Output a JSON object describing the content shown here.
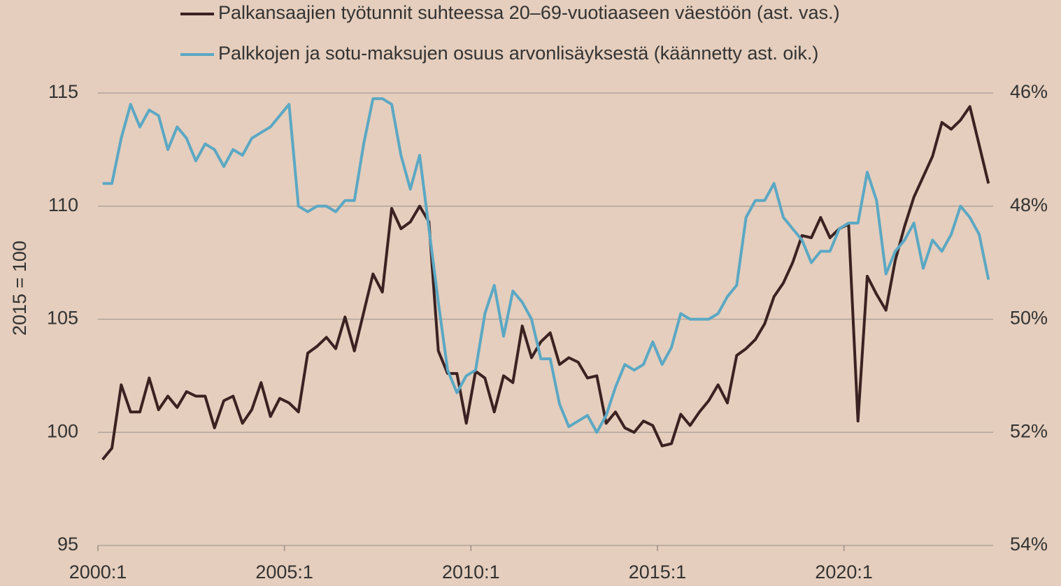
{
  "chart_data": {
    "type": "line",
    "y_label": "2015 = 100",
    "categories": [
      "2000:1",
      null,
      null,
      null,
      null,
      null,
      null,
      null,
      null,
      null,
      null,
      null,
      null,
      null,
      null,
      null,
      null,
      null,
      null,
      null,
      "2005:1",
      null,
      null,
      null,
      null,
      null,
      null,
      null,
      null,
      null,
      null,
      null,
      null,
      null,
      null,
      null,
      null,
      null,
      null,
      null,
      "2010:1",
      null,
      null,
      null,
      null,
      null,
      null,
      null,
      null,
      null,
      null,
      null,
      null,
      null,
      null,
      null,
      null,
      null,
      null,
      null,
      "2015:1",
      null,
      null,
      null,
      null,
      null,
      null,
      null,
      null,
      null,
      null,
      null,
      null,
      null,
      null,
      null,
      null,
      null,
      null,
      null,
      "2020:1",
      null,
      null,
      null,
      null,
      null,
      null,
      null,
      null,
      null,
      null,
      null,
      null,
      null,
      null,
      null
    ],
    "series": [
      {
        "name": "Palkansaajien työtunnit suhteessa 20–69-vuotiaaseen väestöön (ast. vas.)",
        "color": "#3b2222",
        "axis": "y",
        "values": [
          98.8,
          99.3,
          102.1,
          100.9,
          100.9,
          102.4,
          101.0,
          101.6,
          101.1,
          101.8,
          101.6,
          101.6,
          100.2,
          101.4,
          101.6,
          100.4,
          101.0,
          102.2,
          100.7,
          101.5,
          101.3,
          100.9,
          103.5,
          103.8,
          104.2,
          103.7,
          105.1,
          103.6,
          105.3,
          107.0,
          106.2,
          109.9,
          109.0,
          109.3,
          110.0,
          109.3,
          103.6,
          102.6,
          102.6,
          100.4,
          102.7,
          102.4,
          100.9,
          102.5,
          102.2,
          104.7,
          103.3,
          104.0,
          104.4,
          103.0,
          103.3,
          103.1,
          102.4,
          102.5,
          100.4,
          100.9,
          100.2,
          100.0,
          100.5,
          100.3,
          99.4,
          99.5,
          100.8,
          100.3,
          100.9,
          101.4,
          102.1,
          101.3,
          103.4,
          103.7,
          104.1,
          104.8,
          106.0,
          106.6,
          107.5,
          108.7,
          108.6,
          109.5,
          108.6,
          109.0,
          109.2,
          100.5,
          106.9,
          106.1,
          105.4,
          107.6,
          109.1,
          110.4,
          111.3,
          112.2,
          113.7,
          113.4,
          113.8,
          114.4,
          112.7,
          111.0
        ]
      },
      {
        "name": "Palkkojen ja sotu-maksujen osuus arvonlisäyksestä (käännetty ast. oik.)",
        "color": "#5ba8c4",
        "axis": "y2",
        "values": [
          47.6,
          47.6,
          46.8,
          46.2,
          46.6,
          46.3,
          46.4,
          47.0,
          46.6,
          46.8,
          47.2,
          46.9,
          47.0,
          47.3,
          47.0,
          47.1,
          46.8,
          46.7,
          46.6,
          46.4,
          46.2,
          48.0,
          48.1,
          48.0,
          48.0,
          48.1,
          47.9,
          47.9,
          46.9,
          46.1,
          46.1,
          46.2,
          47.1,
          47.7,
          47.1,
          48.4,
          49.7,
          50.9,
          51.3,
          51.0,
          50.9,
          49.9,
          49.4,
          50.3,
          49.5,
          49.7,
          50.0,
          50.7,
          50.7,
          51.5,
          51.9,
          51.8,
          51.7,
          52.0,
          51.7,
          51.2,
          50.8,
          50.9,
          50.8,
          50.4,
          50.8,
          50.5,
          49.9,
          50.0,
          50.0,
          50.0,
          49.9,
          49.6,
          49.4,
          48.2,
          47.9,
          47.9,
          47.6,
          48.2,
          48.4,
          48.6,
          49.0,
          48.8,
          48.8,
          48.4,
          48.3,
          48.3,
          47.4,
          47.9,
          49.2,
          48.8,
          48.6,
          48.3,
          49.1,
          48.6,
          48.8,
          48.5,
          48.0,
          48.2,
          48.5,
          49.3
        ]
      }
    ],
    "ylim": [
      95,
      115
    ],
    "yticks": [
      95,
      100,
      105,
      110,
      115
    ],
    "y2lim": [
      54,
      46
    ],
    "y2ticks": [
      {
        "value": 46,
        "label": "46%"
      },
      {
        "value": 48,
        "label": "48%"
      },
      {
        "value": 50,
        "label": "50%"
      },
      {
        "value": 52,
        "label": "52%"
      },
      {
        "value": 54,
        "label": "54%"
      }
    ],
    "grid": true,
    "legend": "top"
  }
}
